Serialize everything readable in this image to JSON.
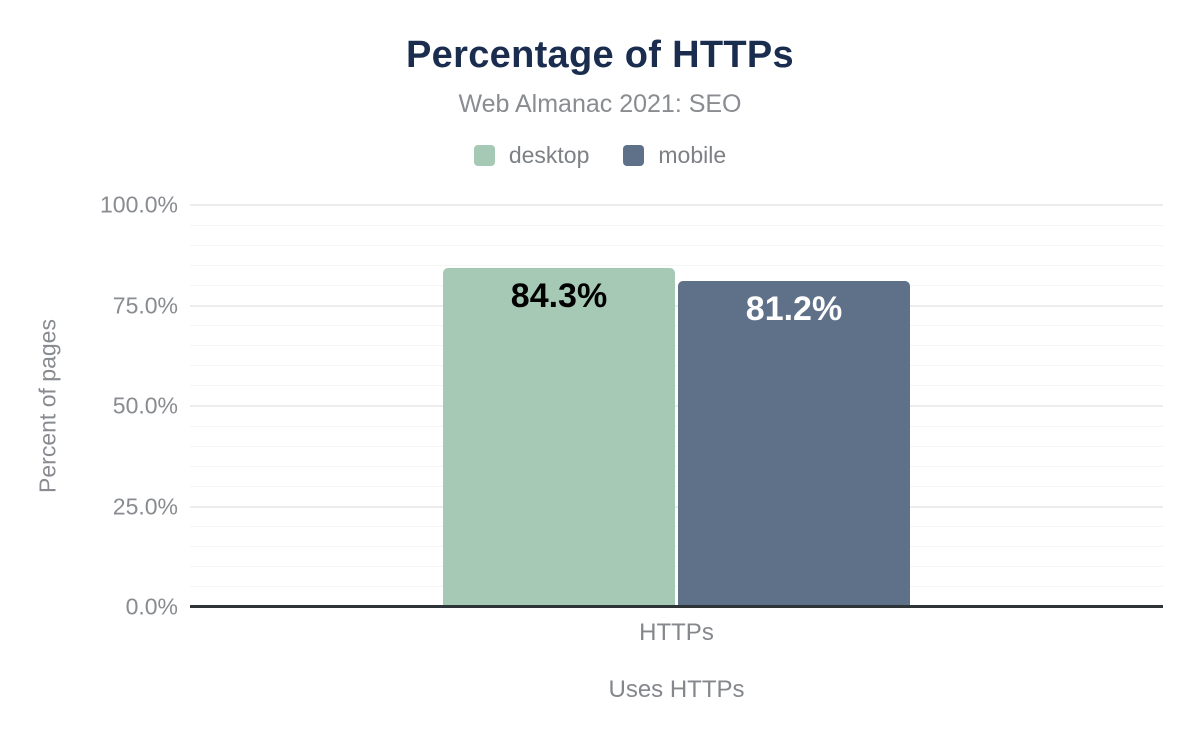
{
  "chart_data": {
    "type": "bar",
    "title": "Percentage of HTTPs",
    "subtitle": "Web Almanac 2021: SEO",
    "title_color": "#1b2d4f",
    "categories": [
      "HTTPs"
    ],
    "series": [
      {
        "name": "desktop",
        "values": [
          84.3
        ],
        "labels": [
          "84.3%"
        ],
        "color": "#a6c9b6",
        "label_color": "#000000"
      },
      {
        "name": "mobile",
        "values": [
          81.2
        ],
        "labels": [
          "81.2%"
        ],
        "color": "#5f7089",
        "label_color": "#ffffff"
      }
    ],
    "xlabel": "Uses HTTPs",
    "ylabel": "Percent of pages",
    "ylim": [
      0,
      100
    ],
    "y_minor_step": 5,
    "y_major_step": 25,
    "y_ticks": [
      {
        "value": 0,
        "label": "0.0%"
      },
      {
        "value": 25,
        "label": "25.0%"
      },
      {
        "value": 50,
        "label": "50.0%"
      },
      {
        "value": 75,
        "label": "75.0%"
      },
      {
        "value": 100,
        "label": "100.0%"
      }
    ],
    "grid": true,
    "legend_position": "top"
  }
}
